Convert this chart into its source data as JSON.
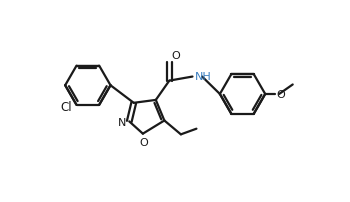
{
  "bg": "#ffffff",
  "lc": "#1a1a1a",
  "nc": "#3a7fc1",
  "lw": 1.6,
  "fs": 8.0,
  "xlim": [
    -0.5,
    7.5
  ],
  "ylim": [
    -0.3,
    3.2
  ]
}
